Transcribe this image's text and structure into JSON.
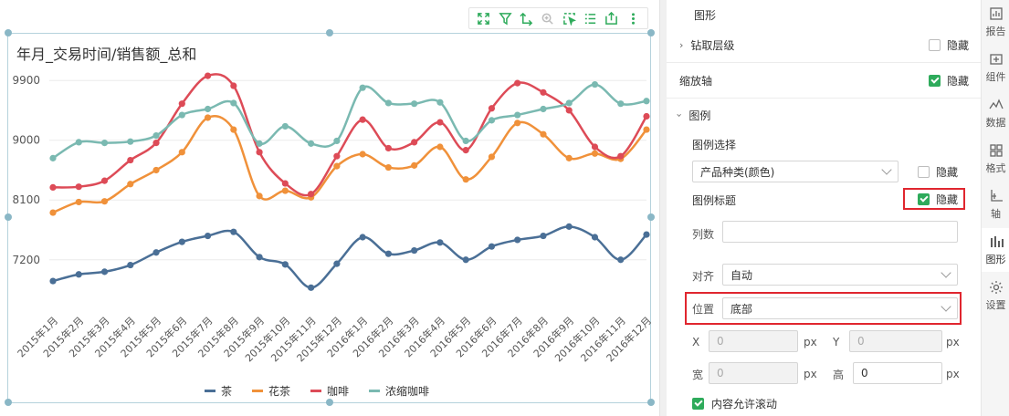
{
  "chart": {
    "title": "年月_交易时间/销售额_总和",
    "legend": [
      {
        "name": "茶",
        "color": "#4a6f96"
      },
      {
        "name": "花茶",
        "color": "#f0913a"
      },
      {
        "name": "咖啡",
        "color": "#dd4b57"
      },
      {
        "name": "浓缩咖啡",
        "color": "#7ab9b1"
      }
    ],
    "toolbar_icons": [
      "zoom-fit-icon",
      "filter-icon",
      "drill-icon",
      "zoom-icon",
      "select-icon",
      "list-icon",
      "export-icon",
      "more-icon"
    ]
  },
  "chart_data": {
    "type": "line",
    "title": "年月_交易时间/销售额_总和",
    "categories": [
      "2015年1月",
      "2015年2月",
      "2015年3月",
      "2015年4月",
      "2015年5月",
      "2015年6月",
      "2015年7月",
      "2015年8月",
      "2015年9月",
      "2015年10月",
      "2015年11月",
      "2015年12月",
      "2016年1月",
      "2016年2月",
      "2016年3月",
      "2016年4月",
      "2016年5月",
      "2016年6月",
      "2016年7月",
      "2016年8月",
      "2016年9月",
      "2016年10月",
      "2016年11月",
      "2016年12月"
    ],
    "yticks": [
      7200,
      8100,
      9000,
      9900
    ],
    "ylim": [
      6400,
      10150
    ],
    "series": [
      {
        "name": "茶",
        "color": "#4a6f96",
        "values": [
          6880,
          6980,
          7020,
          7120,
          7310,
          7470,
          7560,
          7620,
          7240,
          7130,
          6780,
          7140,
          7540,
          7290,
          7340,
          7460,
          7200,
          7400,
          7500,
          7560,
          7700,
          7540,
          7200,
          7580
        ]
      },
      {
        "name": "花茶",
        "color": "#f0913a",
        "values": [
          7910,
          8070,
          8080,
          8340,
          8550,
          8820,
          9340,
          9160,
          8160,
          8240,
          8140,
          8610,
          8790,
          8590,
          8620,
          8900,
          8410,
          8750,
          9260,
          9090,
          8730,
          8800,
          8720,
          9160
        ]
      },
      {
        "name": "咖啡",
        "color": "#dd4b57",
        "values": [
          8290,
          8300,
          8390,
          8700,
          8960,
          9550,
          9970,
          9820,
          8820,
          8350,
          8190,
          8760,
          9310,
          8880,
          8970,
          9270,
          8850,
          9480,
          9860,
          9720,
          9450,
          8900,
          8760,
          9360
        ]
      },
      {
        "name": "浓缩咖啡",
        "color": "#7ab9b1",
        "values": [
          8730,
          8970,
          8960,
          8980,
          9070,
          9380,
          9470,
          9560,
          8950,
          9210,
          8950,
          8990,
          9790,
          9560,
          9550,
          9570,
          8990,
          9300,
          9380,
          9470,
          9560,
          9840,
          9550,
          9590
        ]
      }
    ],
    "legend_position": "bottom",
    "grid": true
  },
  "panel": {
    "section_title": "图形",
    "drill_label": "钻取层级",
    "drill_hide": "隐藏",
    "drill_hide_checked": false,
    "zoom_axis_label": "缩放轴",
    "zoom_hide": "隐藏",
    "zoom_hide_checked": true,
    "legend_section": "图例",
    "legend_select_label": "图例选择",
    "legend_select_value": "产品种类(颜色)",
    "legend_select_hide": "隐藏",
    "legend_select_hide_checked": false,
    "legend_title_label": "图例标题",
    "legend_title_hide": "隐藏",
    "legend_title_hide_checked": true,
    "columns_label": "列数",
    "columns_value": "",
    "align_label": "对齐",
    "align_value": "自动",
    "position_label": "位置",
    "position_value": "底部",
    "x_label": "X",
    "x_value": "0",
    "y_label": "Y",
    "y_value": "0",
    "px": "px",
    "width_label": "宽",
    "width_value": "0",
    "height_label": "高",
    "height_value": "0",
    "scroll_label": "内容允许滚动",
    "scroll_checked": true
  },
  "side_nav": [
    {
      "label": "报告",
      "icon": "report-icon"
    },
    {
      "label": "组件",
      "icon": "component-icon"
    },
    {
      "label": "数据",
      "icon": "data-icon"
    },
    {
      "label": "格式",
      "icon": "format-icon"
    },
    {
      "label": "轴",
      "icon": "axis-icon"
    },
    {
      "label": "图形",
      "icon": "chart-icon",
      "active": true
    },
    {
      "label": "设置",
      "icon": "settings-icon"
    }
  ]
}
